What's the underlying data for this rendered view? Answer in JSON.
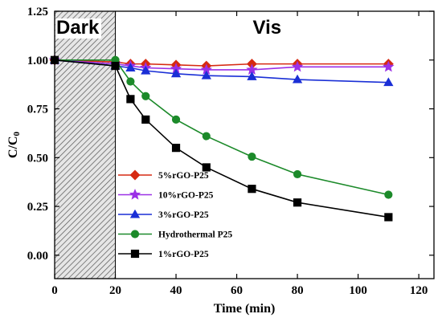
{
  "chart_data": {
    "type": "line",
    "title": "",
    "xlabel": "Time (min)",
    "ylabel": "C/C",
    "ylabel_subscript": "0",
    "xlim": [
      0,
      125
    ],
    "ylim": [
      -0.12,
      1.25
    ],
    "xticks": [
      0,
      20,
      40,
      60,
      80,
      100,
      120
    ],
    "yticks": [
      0.0,
      0.25,
      0.5,
      0.75,
      1.0,
      1.25
    ],
    "ytick_labels": [
      "0.00",
      "0.25",
      "0.50",
      "0.75",
      "1.00",
      "1.25"
    ],
    "regions": [
      {
        "label": "Dark",
        "x_start": 0,
        "x_end": 20,
        "hatched": true
      },
      {
        "label": "Vis",
        "x_start": 20,
        "x_end": 125,
        "hatched": false
      }
    ],
    "legend_position": "lower-left",
    "series": [
      {
        "name": "5%rGO-P25",
        "color": "#d62a12",
        "marker": "diamond",
        "x": [
          0,
          20,
          25,
          30,
          40,
          50,
          65,
          80,
          110
        ],
        "y": [
          1.0,
          0.99,
          0.98,
          0.98,
          0.975,
          0.97,
          0.98,
          0.98,
          0.98
        ]
      },
      {
        "name": "10%rGO-P25",
        "color": "#9b30e6",
        "marker": "star",
        "x": [
          0,
          20,
          25,
          30,
          40,
          50,
          65,
          80,
          110
        ],
        "y": [
          1.0,
          0.98,
          0.97,
          0.96,
          0.955,
          0.95,
          0.95,
          0.965,
          0.965
        ]
      },
      {
        "name": "3%rGO-P25",
        "color": "#1a2fd6",
        "marker": "triangle",
        "x": [
          0,
          20,
          25,
          30,
          40,
          50,
          65,
          80,
          110
        ],
        "y": [
          1.0,
          0.97,
          0.96,
          0.945,
          0.93,
          0.92,
          0.915,
          0.9,
          0.885
        ]
      },
      {
        "name": "Hydrothermal P25",
        "color": "#1c8a2a",
        "marker": "circle",
        "x": [
          0,
          20,
          25,
          30,
          40,
          50,
          65,
          80,
          110
        ],
        "y": [
          1.0,
          1.0,
          0.89,
          0.815,
          0.695,
          0.61,
          0.505,
          0.415,
          0.31
        ]
      },
      {
        "name": "1%rGO-P25",
        "color": "#000000",
        "marker": "square",
        "x": [
          0,
          20,
          25,
          30,
          40,
          50,
          65,
          80,
          110
        ],
        "y": [
          1.0,
          0.97,
          0.8,
          0.695,
          0.55,
          0.45,
          0.34,
          0.27,
          0.195
        ]
      }
    ]
  }
}
